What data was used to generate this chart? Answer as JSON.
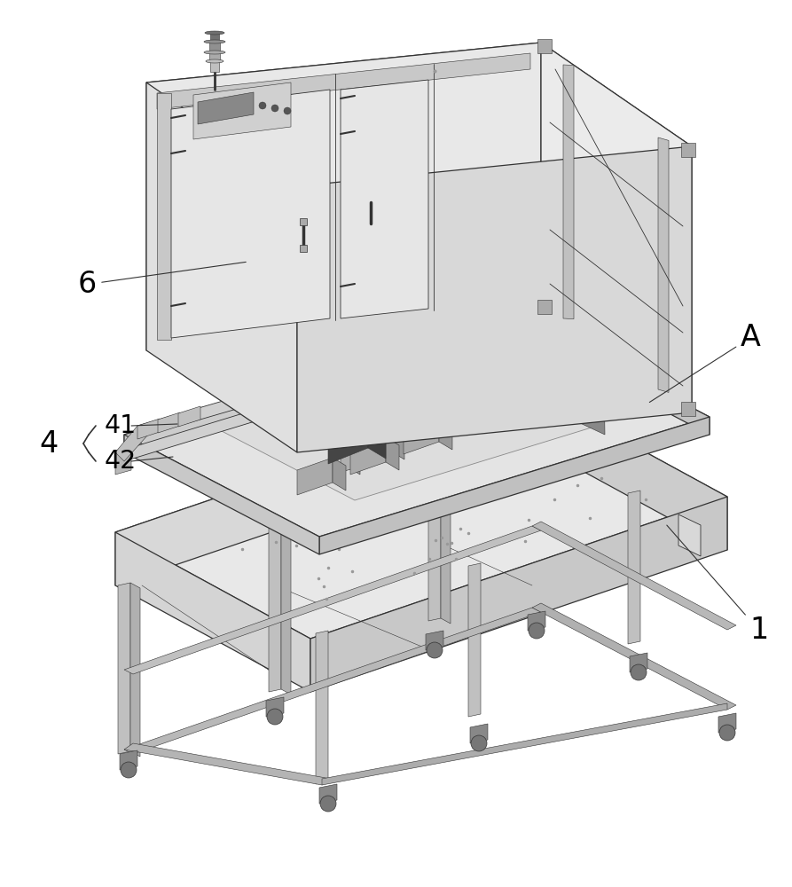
{
  "bg_color": "#ffffff",
  "lc": "#333333",
  "figsize": [
    8.93,
    10.0
  ],
  "dpi": 100,
  "label_fontsize": 24
}
